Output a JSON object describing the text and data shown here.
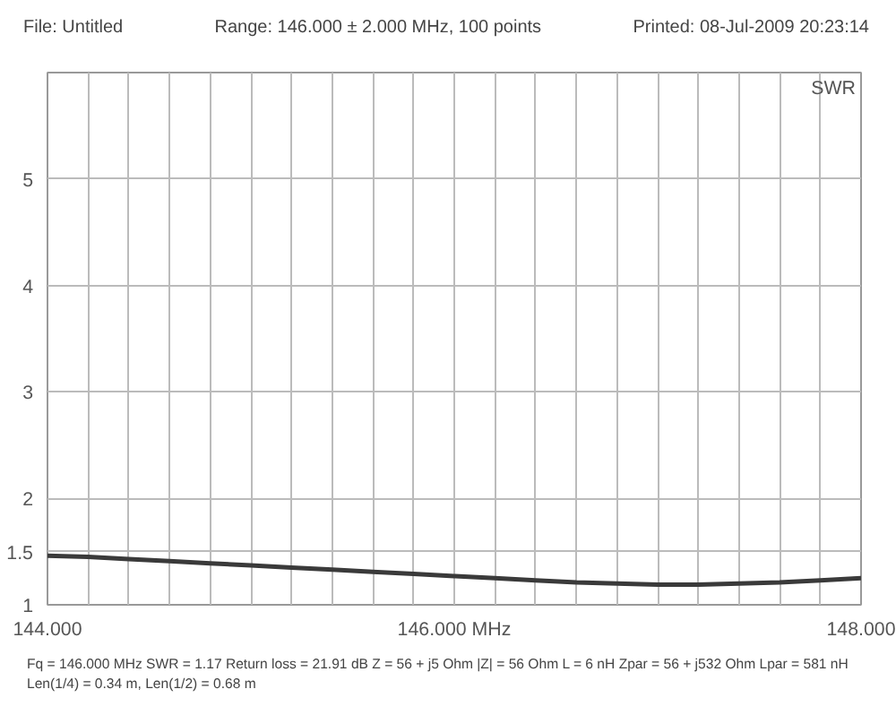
{
  "chart_data": {
    "type": "line",
    "ylabel": "SWR",
    "x": [
      144.0,
      144.2,
      144.4,
      144.6,
      144.8,
      145.0,
      145.2,
      145.4,
      145.6,
      145.8,
      146.0,
      146.2,
      146.4,
      146.6,
      146.8,
      147.0,
      147.2,
      147.4,
      147.6,
      147.8,
      148.0
    ],
    "series": [
      {
        "color": "#3a3a3a",
        "values": [
          1.46,
          1.45,
          1.43,
          1.41,
          1.39,
          1.37,
          1.35,
          1.33,
          1.31,
          1.29,
          1.27,
          1.25,
          1.23,
          1.21,
          1.2,
          1.19,
          1.19,
          1.2,
          1.21,
          1.23,
          1.25
        ]
      }
    ],
    "xlim": [
      144.0,
      148.0
    ],
    "ylim": [
      1,
      6
    ],
    "xticks": [
      {
        "value": 144.0,
        "label": "144.000"
      },
      {
        "value": 144.2,
        "label": null
      },
      {
        "value": 144.4,
        "label": null
      },
      {
        "value": 144.6,
        "label": null
      },
      {
        "value": 144.8,
        "label": null
      },
      {
        "value": 145.0,
        "label": null
      },
      {
        "value": 145.2,
        "label": null
      },
      {
        "value": 145.4,
        "label": null
      },
      {
        "value": 145.6,
        "label": null
      },
      {
        "value": 145.8,
        "label": null
      },
      {
        "value": 146.0,
        "label": "146.000 MHz"
      },
      {
        "value": 146.2,
        "label": null
      },
      {
        "value": 146.4,
        "label": null
      },
      {
        "value": 146.6,
        "label": null
      },
      {
        "value": 146.8,
        "label": null
      },
      {
        "value": 147.0,
        "label": null
      },
      {
        "value": 147.2,
        "label": null
      },
      {
        "value": 147.4,
        "label": null
      },
      {
        "value": 147.6,
        "label": null
      },
      {
        "value": 147.8,
        "label": null
      },
      {
        "value": 148.0,
        "label": "148.000"
      }
    ],
    "yticks": [
      1,
      1.5,
      2,
      3,
      4,
      5
    ],
    "grid": true,
    "marker": "none",
    "line_style": "solid",
    "annotations": [
      "File: Untitled",
      "Range: 146.000 ± 2.000 MHz, 100 points",
      "Printed: 08-Jul-2009 20:23:14",
      "Fq = 146.000 MHz   SWR = 1.17   Return loss = 21.91 dB   Z = 56 + j5 Ohm   |Z| = 56 Ohm   L = 6 nH   Zpar = 56 + j532 Ohm   Lpar = 581 nH",
      "Len(1/4) = 0.34 m, Len(1/2) = 0.68 m"
    ]
  }
}
